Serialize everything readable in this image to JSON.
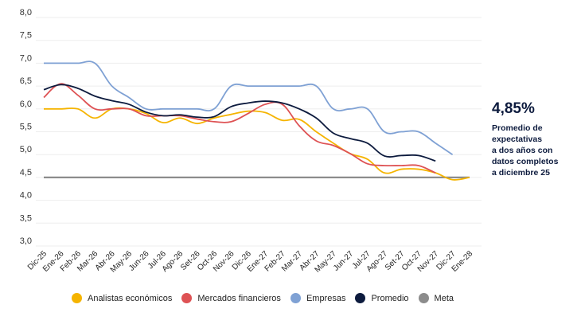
{
  "chart_data": {
    "type": "line",
    "title": "",
    "xlabel": "",
    "ylabel": "",
    "ylim": [
      3.0,
      8.0
    ],
    "yticks": [
      "3,0",
      "3,5",
      "4,0",
      "4,5",
      "5,0",
      "5,5",
      "6,0",
      "6,5",
      "7,0",
      "7,5",
      "8,0"
    ],
    "grid": true,
    "legend_placement": "bottom",
    "categories": [
      "Dic-25",
      "Ene-26",
      "Feb-26",
      "Mar-26",
      "Abr-26",
      "May-26",
      "Jun-26",
      "Jul-26",
      "Ago-26",
      "Set-26",
      "Oct-26",
      "Nov-26",
      "Dic-26",
      "Ene-27",
      "Feb-27",
      "Mar-27",
      "Abr-27",
      "May-27",
      "Jun-27",
      "Jul-27",
      "Ago-27",
      "Set-27",
      "Oct-27",
      "Nov-27",
      "Dic-27",
      "Ene-28"
    ],
    "series": [
      {
        "name": "Analistas económicos",
        "color": "#f5b400",
        "values": [
          6.0,
          6.0,
          6.0,
          5.8,
          6.0,
          6.0,
          5.9,
          5.7,
          5.8,
          5.68,
          5.8,
          5.88,
          5.95,
          5.92,
          5.75,
          5.77,
          5.5,
          5.25,
          5.02,
          4.9,
          4.6,
          4.68,
          4.68,
          4.6,
          4.45,
          4.5
        ]
      },
      {
        "name": "Mercados financieros",
        "color": "#de5254",
        "values": [
          6.25,
          6.55,
          6.3,
          6.0,
          6.0,
          6.0,
          5.85,
          5.85,
          5.85,
          5.78,
          5.72,
          5.72,
          5.9,
          6.1,
          6.1,
          5.63,
          5.3,
          5.2,
          5.02,
          4.8,
          4.76,
          4.76,
          4.76,
          4.6,
          null,
          null
        ]
      },
      {
        "name": "Empresas",
        "color": "#7fa1d4",
        "values": [
          7.0,
          7.0,
          7.0,
          7.0,
          6.5,
          6.25,
          6.0,
          6.0,
          6.0,
          6.0,
          6.0,
          6.5,
          6.5,
          6.5,
          6.5,
          6.5,
          6.5,
          6.0,
          6.0,
          6.0,
          5.5,
          5.5,
          5.5,
          5.25,
          5.0,
          null
        ]
      },
      {
        "name": "Promedio",
        "color": "#0d1b3e",
        "values": [
          6.42,
          6.53,
          6.45,
          6.28,
          6.18,
          6.1,
          5.93,
          5.85,
          5.87,
          5.82,
          5.83,
          6.05,
          6.13,
          6.17,
          6.13,
          6.0,
          5.8,
          5.47,
          5.35,
          5.25,
          4.97,
          4.98,
          4.98,
          4.86,
          null,
          null
        ]
      },
      {
        "name": "Meta",
        "color": "#8c8c8c",
        "values": [
          4.5,
          4.5,
          4.5,
          4.5,
          4.5,
          4.5,
          4.5,
          4.5,
          4.5,
          4.5,
          4.5,
          4.5,
          4.5,
          4.5,
          4.5,
          4.5,
          4.5,
          4.5,
          4.5,
          4.5,
          4.5,
          4.5,
          4.5,
          4.5,
          4.5,
          4.5
        ]
      }
    ]
  },
  "summary": {
    "value": "4,85%",
    "description": "Promedio de\nexpectativas\na dos años con\ndatos completos\na diciembre 25"
  }
}
